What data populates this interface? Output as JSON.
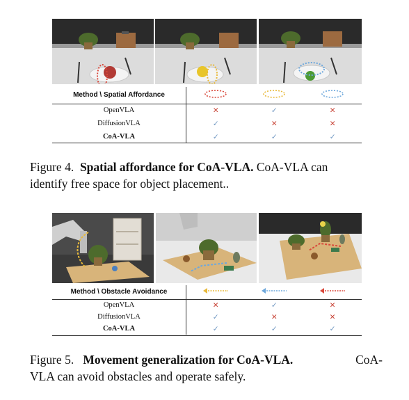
{
  "colors": {
    "cross": "#c9473a",
    "check": "#6f97c2",
    "red_marker": "#d9483b",
    "yellow_marker": "#e8b93a",
    "blue_marker": "#6ea8dc"
  },
  "figure4": {
    "images": [
      {
        "name": "plate-with-red-fruit"
      },
      {
        "name": "plate-with-yellow-pepper"
      },
      {
        "name": "plate-with-green-apple"
      }
    ],
    "table": {
      "header": "Method \\ Spatial Affordance",
      "column_markers": [
        "red-dotted-ellipse",
        "yellow-dotted-ellipse",
        "blue-dotted-ellipse"
      ],
      "rows": [
        {
          "method": "OpenVLA",
          "marks": [
            "✕",
            "✓",
            "✕"
          ]
        },
        {
          "method": "DiffusionVLA",
          "marks": [
            "✓",
            "✕",
            "✕"
          ]
        },
        {
          "method": "CoA-VLA",
          "marks": [
            "✓",
            "✓",
            "✓"
          ]
        }
      ]
    },
    "caption": {
      "label": "Figure 4.",
      "title": "Spatial affordance for CoA-VLA.",
      "text_line1": "CoA-VLA  can",
      "text_line2": "identify free space for object placement.."
    }
  },
  "figure5": {
    "images": [
      {
        "name": "robot-arm-tray-left"
      },
      {
        "name": "wooden-board-plant"
      },
      {
        "name": "wooden-board-top-view"
      }
    ],
    "table": {
      "header": "Method \\ Obstacle Avoidance",
      "column_markers": [
        "yellow-dotted-arrow",
        "blue-dotted-arrow",
        "red-dotted-arrow"
      ],
      "rows": [
        {
          "method": "OpenVLA",
          "marks": [
            "✕",
            "✓",
            "✕"
          ]
        },
        {
          "method": "DiffusionVLA",
          "marks": [
            "✓",
            "✕",
            "✕"
          ]
        },
        {
          "method": "CoA-VLA",
          "marks": [
            "✓",
            "✓",
            "✓"
          ]
        }
      ]
    },
    "caption": {
      "label": "Figure 5.",
      "title": "Movement generalization for CoA-VLA.",
      "text_line1": "CoA-",
      "text_line2": "VLA can avoid obstacles and operate safely."
    }
  }
}
